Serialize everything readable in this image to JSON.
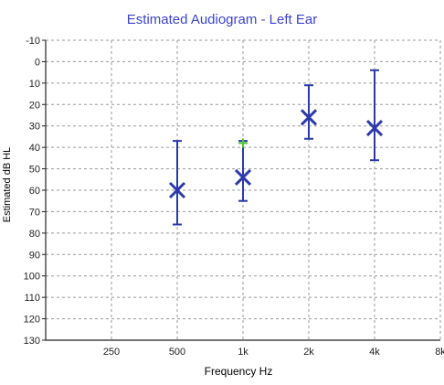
{
  "colors": {
    "title": "#3b44c8",
    "series": "#2b3aa8",
    "marker_extra": "#4fc23a",
    "grid": "#9a9a9a",
    "axis": "#222222"
  },
  "chart_data": {
    "type": "scatter",
    "title": "Estimated Audiogram - Left Ear",
    "xlabel": "Frequency Hz",
    "ylabel": "Estimated dB HL",
    "x_categories": [
      "",
      "250",
      "500",
      "1k",
      "2k",
      "4k",
      "8k"
    ],
    "yticks": [
      -10,
      0,
      10,
      20,
      30,
      40,
      50,
      60,
      70,
      80,
      90,
      100,
      110,
      120,
      130
    ],
    "ylim": [
      -10,
      130
    ],
    "y_inverted": true,
    "grid": true,
    "series": [
      {
        "points": [
          {
            "x": "500",
            "y": 60,
            "low": 37,
            "high": 76
          },
          {
            "x": "1k",
            "y": 54,
            "low": 37,
            "high": 65
          },
          {
            "x": "2k",
            "y": 26,
            "low": 11,
            "high": 36
          },
          {
            "x": "4k",
            "y": 31,
            "low": 4,
            "high": 46
          }
        ]
      }
    ],
    "extra_markers": [
      {
        "x": "1k",
        "y": 38,
        "symbol": "plus"
      }
    ]
  }
}
